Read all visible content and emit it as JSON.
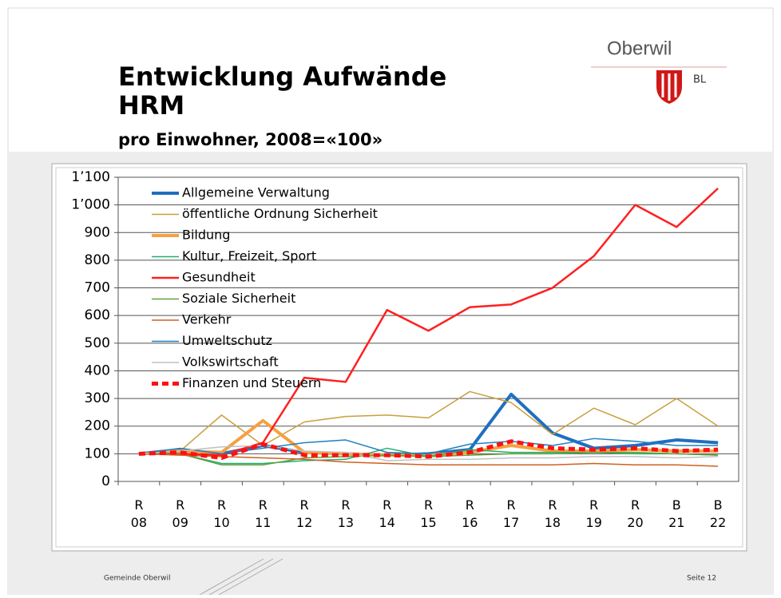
{
  "slide": {
    "title_line1": "Entwicklung Aufwände",
    "title_line2": "HRM",
    "subtitle": "pro Einwohner, 2008=«100»",
    "logo_name": "Oberwil",
    "logo_region": "BL",
    "footer_left": "Gemeinde Oberwil",
    "footer_right": "Seite 12"
  },
  "chart_data": {
    "type": "line",
    "categories": [
      "R 08",
      "R 09",
      "R 10",
      "R 11",
      "R 12",
      "R 13",
      "R 14",
      "R 15",
      "R 16",
      "R 17",
      "R 18",
      "R 19",
      "R 20",
      "B 21",
      "B 22"
    ],
    "ylim": [
      0,
      1100
    ],
    "yticks": [
      0,
      100,
      200,
      300,
      400,
      500,
      600,
      700,
      800,
      900,
      {
        "value": 1000,
        "label": "1’000"
      },
      {
        "value": 1100,
        "label": "1’100"
      }
    ],
    "grid": true,
    "legend": "upper left",
    "series": [
      {
        "name": "Allgemeine Verwaltung",
        "color": "#1f6fbf",
        "line_width": 4,
        "values": [
          100,
          115,
          100,
          130,
          105,
          100,
          95,
          100,
          115,
          315,
          175,
          120,
          130,
          150,
          140
        ]
      },
      {
        "name": "öffentliche Ordnung Sicherheit",
        "color": "#c8a03c",
        "line_width": 1.5,
        "values": [
          100,
          110,
          240,
          130,
          215,
          235,
          240,
          230,
          325,
          285,
          170,
          265,
          205,
          300,
          200
        ]
      },
      {
        "name": "Bildung",
        "color": "#f7a040",
        "line_width": 4,
        "values": [
          100,
          110,
          105,
          220,
          105,
          100,
          95,
          95,
          105,
          130,
          110,
          110,
          115,
          110,
          110
        ]
      },
      {
        "name": "Kultur, Freizeit, Sport",
        "color": "#20b070",
        "line_width": 1.5,
        "values": [
          100,
          100,
          65,
          65,
          75,
          80,
          120,
          90,
          115,
          105,
          105,
          105,
          100,
          100,
          95
        ]
      },
      {
        "name": "Gesundheit",
        "color": "#ff2020",
        "line_width": 2.5,
        "values": [
          100,
          100,
          95,
          140,
          375,
          360,
          620,
          545,
          630,
          640,
          700,
          815,
          1000,
          920,
          1060
        ]
      },
      {
        "name": "Soziale Sicherheit",
        "color": "#60a040",
        "line_width": 1.5,
        "values": [
          100,
          100,
          60,
          60,
          85,
          90,
          95,
          90,
          95,
          100,
          100,
          105,
          105,
          100,
          95
        ]
      },
      {
        "name": "Verkehr",
        "color": "#d06020",
        "line_width": 1.5,
        "values": [
          100,
          95,
          90,
          85,
          80,
          70,
          65,
          60,
          60,
          60,
          60,
          65,
          60,
          60,
          55
        ]
      },
      {
        "name": "Umweltschutz",
        "color": "#2080c0",
        "line_width": 1.5,
        "values": [
          100,
          120,
          100,
          120,
          140,
          150,
          105,
          100,
          135,
          145,
          130,
          155,
          145,
          130,
          130
        ]
      },
      {
        "name": "Volkswirtschaft",
        "color": "#c0c0c0",
        "line_width": 1.5,
        "values": [
          100,
          110,
          125,
          130,
          110,
          105,
          75,
          80,
          80,
          85,
          85,
          90,
          90,
          85,
          90
        ]
      },
      {
        "name": "Finanzen und Steuern",
        "color": "#ff1010",
        "line_width": 5,
        "dash": true,
        "values": [
          100,
          105,
          85,
          135,
          95,
          95,
          95,
          90,
          105,
          145,
          120,
          115,
          120,
          110,
          115
        ]
      }
    ]
  }
}
